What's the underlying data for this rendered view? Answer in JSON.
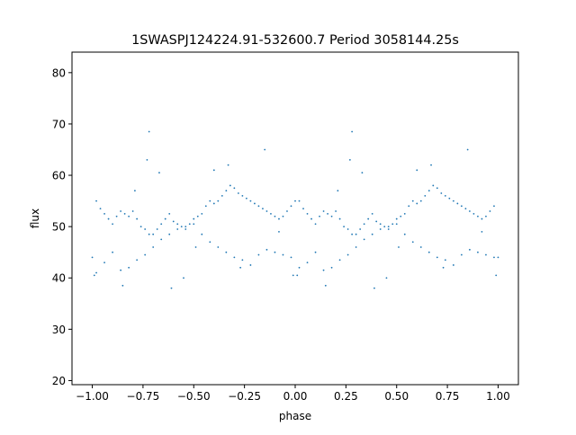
{
  "chart_data": {
    "type": "scatter",
    "title": "1SWASPJ124224.91-532600.7 Period 3058144.25s",
    "xlabel": "phase",
    "ylabel": "flux",
    "xlim": [
      -1.1,
      1.1
    ],
    "ylim": [
      19.2,
      84.0
    ],
    "xticks": [
      -1.0,
      -0.75,
      -0.5,
      -0.25,
      0.0,
      0.25,
      0.5,
      0.75,
      1.0
    ],
    "xtick_labels": [
      "−1.00",
      "−0.75",
      "−0.50",
      "−0.25",
      "0.00",
      "0.25",
      "0.50",
      "0.75",
      "1.00"
    ],
    "yticks": [
      20,
      30,
      40,
      50,
      60,
      70,
      80
    ],
    "ytick_labels": [
      "20",
      "30",
      "40",
      "50",
      "60",
      "70",
      "80"
    ],
    "grid": false,
    "marker_color": "#1f77b4",
    "series": [
      {
        "x": [
          -1.0,
          -0.98,
          -0.96,
          -0.94,
          -0.92,
          -0.9,
          -0.88,
          -0.86,
          -0.84,
          -0.82,
          -0.8,
          -0.78,
          -0.76,
          -0.74,
          -0.72,
          -0.7,
          -0.68,
          -0.66,
          -0.64,
          -0.62,
          -0.6,
          -0.58,
          -0.56,
          -0.54,
          -0.52,
          -0.5,
          -0.48,
          -0.46,
          -0.44,
          -0.42,
          -0.4,
          -0.38,
          -0.36,
          -0.34,
          -0.32,
          -0.3,
          -0.28,
          -0.26,
          -0.24,
          -0.22,
          -0.2,
          -0.18,
          -0.16,
          -0.14,
          -0.12,
          -0.1,
          -0.08,
          -0.06,
          -0.04,
          -0.02,
          0.0,
          0.02,
          0.04,
          0.06,
          0.08,
          0.1,
          0.12,
          0.14,
          0.16,
          0.18,
          0.2,
          0.22,
          0.24,
          0.26,
          0.28,
          0.3,
          0.32,
          0.34,
          0.36,
          0.38,
          0.4,
          0.42,
          0.44,
          0.46,
          0.48,
          0.5,
          0.52,
          0.54,
          0.56,
          0.58,
          0.6,
          0.62,
          0.64,
          0.66,
          0.68,
          0.7,
          0.72,
          0.74,
          0.76,
          0.78,
          0.8,
          0.82,
          0.84,
          0.86,
          0.88,
          0.9,
          0.92,
          0.94,
          0.96,
          0.98,
          1.0
        ],
        "y": [
          44.0,
          55.0,
          53.5,
          52.5,
          51.5,
          50.5,
          52.0,
          53.0,
          52.5,
          52.0,
          53.0,
          51.5,
          50.0,
          49.5,
          48.5,
          48.5,
          49.5,
          50.5,
          51.5,
          52.5,
          51.0,
          50.5,
          50.0,
          49.5,
          50.5,
          51.5,
          52.0,
          52.5,
          54.0,
          55.0,
          54.5,
          55.0,
          56.0,
          57.0,
          58.0,
          57.5,
          56.5,
          56.0,
          55.5,
          55.0,
          54.5,
          54.0,
          53.5,
          53.0,
          52.5,
          52.0,
          51.5,
          52.0,
          53.0,
          54.0,
          55.0,
          55.0,
          53.5,
          52.5,
          51.5,
          50.5,
          52.0,
          53.0,
          52.5,
          52.0,
          53.0,
          51.5,
          50.0,
          49.5,
          48.5,
          48.5,
          49.5,
          50.5,
          51.5,
          52.5,
          51.0,
          50.5,
          50.0,
          49.5,
          50.5,
          51.5,
          52.0,
          52.5,
          54.0,
          55.0,
          54.5,
          55.0,
          56.0,
          57.0,
          58.0,
          57.5,
          56.5,
          56.0,
          55.5,
          55.0,
          54.5,
          54.0,
          53.5,
          53.0,
          52.5,
          52.0,
          51.5,
          52.0,
          53.0,
          54.0,
          44.0
        ]
      },
      {
        "x": [
          -0.98,
          -0.94,
          -0.9,
          -0.86,
          -0.82,
          -0.78,
          -0.74,
          -0.7,
          -0.66,
          -0.62,
          -0.58,
          -0.54,
          -0.5,
          -0.46,
          -0.42,
          -0.38,
          -0.34,
          -0.3,
          -0.26,
          -0.22,
          -0.18,
          -0.14,
          -0.1,
          -0.06,
          -0.02,
          0.02,
          0.06,
          0.1,
          0.14,
          0.18,
          0.22,
          0.26,
          0.3,
          0.34,
          0.38,
          0.42,
          0.46,
          0.5,
          0.54,
          0.58,
          0.62,
          0.66,
          0.7,
          0.74,
          0.78,
          0.82,
          0.86,
          0.9,
          0.94,
          0.98
        ],
        "y": [
          41.0,
          43.0,
          45.0,
          41.5,
          42.0,
          43.5,
          44.5,
          46.0,
          47.5,
          48.5,
          49.5,
          50.0,
          50.5,
          48.5,
          47.0,
          46.0,
          45.0,
          44.0,
          43.5,
          42.5,
          44.5,
          45.5,
          45.0,
          44.5,
          44.0,
          42.0,
          43.0,
          45.0,
          41.5,
          42.0,
          43.5,
          44.5,
          46.0,
          47.5,
          48.5,
          49.5,
          50.0,
          50.5,
          48.5,
          47.0,
          46.0,
          45.0,
          44.0,
          43.5,
          42.5,
          44.5,
          45.5,
          45.0,
          44.5,
          44.0
        ]
      },
      {
        "x": [
          -0.99,
          -0.85,
          -0.79,
          -0.73,
          -0.72,
          -0.67,
          -0.61,
          -0.55,
          -0.49,
          -0.4,
          -0.33,
          -0.27,
          -0.15,
          -0.08,
          -0.01,
          0.01,
          0.15,
          0.21,
          0.27,
          0.28,
          0.33,
          0.39,
          0.45,
          0.51,
          0.6,
          0.67,
          0.73,
          0.85,
          0.92,
          0.99
        ],
        "y": [
          40.5,
          38.5,
          57.0,
          63.0,
          68.5,
          60.5,
          38.0,
          40.0,
          46.0,
          61.0,
          62.0,
          42.0,
          65.0,
          49.0,
          40.5,
          40.5,
          38.5,
          57.0,
          63.0,
          68.5,
          60.5,
          38.0,
          40.0,
          46.0,
          61.0,
          62.0,
          42.0,
          65.0,
          49.0,
          40.5
        ]
      }
    ]
  }
}
